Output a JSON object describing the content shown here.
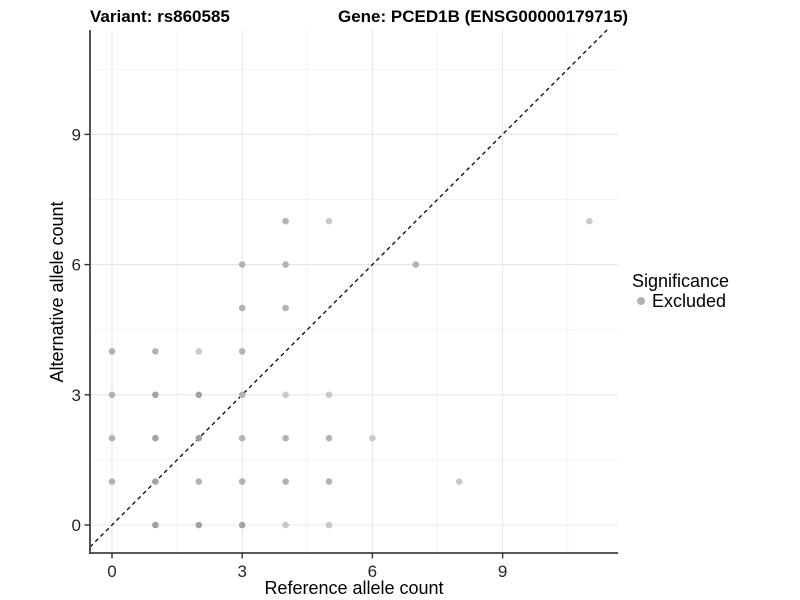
{
  "header": {
    "title_left": "Variant: rs860585",
    "title_right": "Gene: PCED1B (ENSG00000179715)"
  },
  "legend": {
    "title": "Significance",
    "items": [
      {
        "label": "Excluded",
        "color": "#b3b3b3"
      }
    ]
  },
  "chart_data": {
    "type": "scatter",
    "title": "Variant: rs860585",
    "subtitle": "Gene: PCED1B (ENSG00000179715)",
    "xlabel": "Reference allele count",
    "ylabel": "Alternative allele count",
    "xticks": [
      0,
      3,
      6,
      9
    ],
    "yticks": [
      0,
      3,
      6,
      9
    ],
    "xtick_labels": [
      "0",
      "3",
      "6",
      "9"
    ],
    "ytick_labels": [
      "0",
      "3",
      "6",
      "9"
    ],
    "xlim": [
      -0.5,
      11.65
    ],
    "ylim": [
      -0.65,
      11.4
    ],
    "minor_gridlines_x": [
      1.5,
      4.5,
      7.5,
      10.5
    ],
    "minor_gridlines_y": [
      1.5,
      4.5,
      7.5,
      10.5
    ],
    "grid": true,
    "legend_position": "right",
    "identity_line": {
      "type": "y=x",
      "style": "dashed",
      "color": "#000000"
    },
    "shade_colors": {
      "dark": "#a2a2a2",
      "mid": "#b3b3b3",
      "light": "#c9c9c9"
    },
    "series": [
      {
        "name": "Excluded",
        "points": [
          {
            "x": 1,
            "y": 0,
            "shade": "dark"
          },
          {
            "x": 2,
            "y": 0,
            "shade": "dark"
          },
          {
            "x": 3,
            "y": 0,
            "shade": "dark"
          },
          {
            "x": 4,
            "y": 0,
            "shade": "light"
          },
          {
            "x": 5,
            "y": 0,
            "shade": "light"
          },
          {
            "x": 0,
            "y": 1,
            "shade": "mid"
          },
          {
            "x": 1,
            "y": 1,
            "shade": "dark"
          },
          {
            "x": 2,
            "y": 1,
            "shade": "mid"
          },
          {
            "x": 3,
            "y": 1,
            "shade": "mid"
          },
          {
            "x": 4,
            "y": 1,
            "shade": "mid"
          },
          {
            "x": 5,
            "y": 1,
            "shade": "mid"
          },
          {
            "x": 8,
            "y": 1,
            "shade": "light"
          },
          {
            "x": 0,
            "y": 2,
            "shade": "mid"
          },
          {
            "x": 1,
            "y": 2,
            "shade": "dark"
          },
          {
            "x": 2,
            "y": 2,
            "shade": "dark"
          },
          {
            "x": 3,
            "y": 2,
            "shade": "mid"
          },
          {
            "x": 4,
            "y": 2,
            "shade": "mid"
          },
          {
            "x": 5,
            "y": 2,
            "shade": "mid"
          },
          {
            "x": 6,
            "y": 2,
            "shade": "light"
          },
          {
            "x": 0,
            "y": 3,
            "shade": "mid"
          },
          {
            "x": 1,
            "y": 3,
            "shade": "dark"
          },
          {
            "x": 2,
            "y": 3,
            "shade": "dark"
          },
          {
            "x": 3,
            "y": 3,
            "shade": "mid"
          },
          {
            "x": 4,
            "y": 3,
            "shade": "light"
          },
          {
            "x": 5,
            "y": 3,
            "shade": "light"
          },
          {
            "x": 0,
            "y": 4,
            "shade": "mid"
          },
          {
            "x": 1,
            "y": 4,
            "shade": "mid"
          },
          {
            "x": 2,
            "y": 4,
            "shade": "light"
          },
          {
            "x": 3,
            "y": 4,
            "shade": "mid"
          },
          {
            "x": 3,
            "y": 5,
            "shade": "mid"
          },
          {
            "x": 4,
            "y": 5,
            "shade": "mid"
          },
          {
            "x": 3,
            "y": 6,
            "shade": "mid"
          },
          {
            "x": 4,
            "y": 6,
            "shade": "mid"
          },
          {
            "x": 7,
            "y": 6,
            "shade": "mid"
          },
          {
            "x": 4,
            "y": 7,
            "shade": "mid"
          },
          {
            "x": 5,
            "y": 7,
            "shade": "light"
          },
          {
            "x": 11,
            "y": 7,
            "shade": "light"
          }
        ]
      }
    ]
  },
  "colors": {
    "background": "#ffffff",
    "axis_line": "#404040",
    "tick_mark": "#333333",
    "grid_major": "#e7e7e7",
    "grid_minor": "#f2f2f2",
    "point_default": "#b3b3b3"
  }
}
